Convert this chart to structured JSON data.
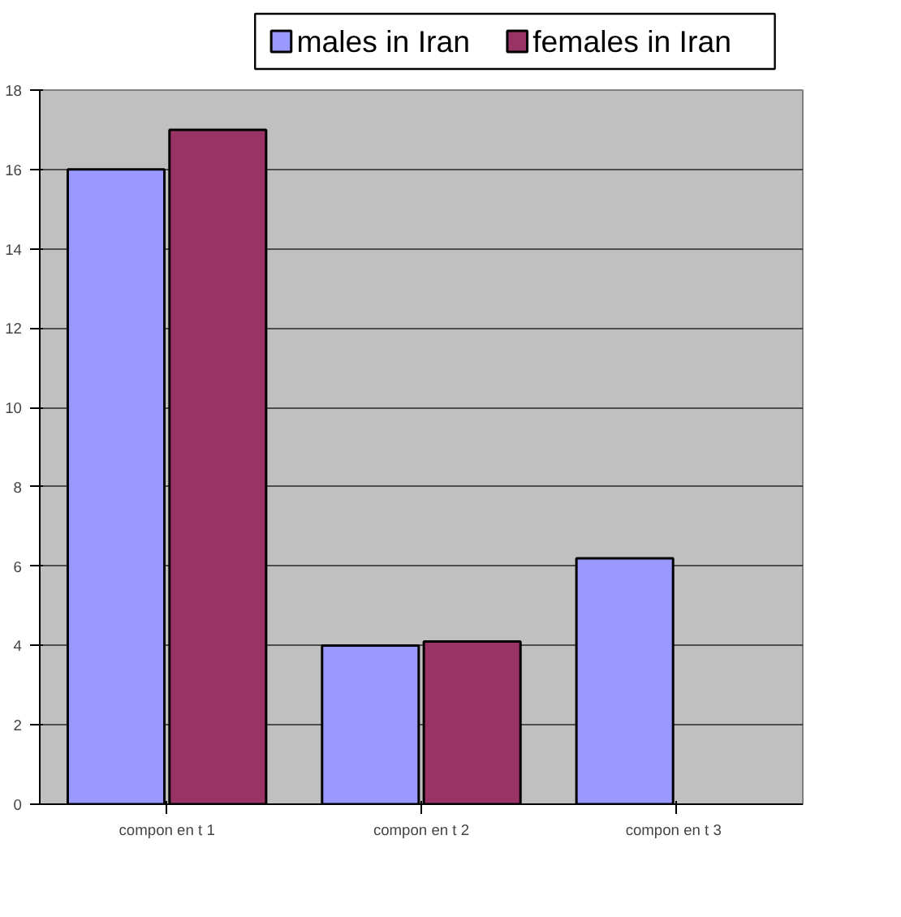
{
  "chart_data": {
    "type": "bar",
    "categories": [
      "compon en t 1",
      "compon en t 2",
      "compon en t  3"
    ],
    "series": [
      {
        "name": "males in Iran",
        "color": "#9999ff",
        "values": [
          16,
          4,
          6.2
        ]
      },
      {
        "name": "females in Iran",
        "color": "#993366",
        "values": [
          17,
          4.1,
          null
        ]
      }
    ],
    "ylim": [
      0,
      18
    ],
    "yticks": [
      0,
      2,
      4,
      6,
      8,
      10,
      12,
      14,
      16,
      18
    ],
    "grid": "y",
    "legend": "top"
  }
}
